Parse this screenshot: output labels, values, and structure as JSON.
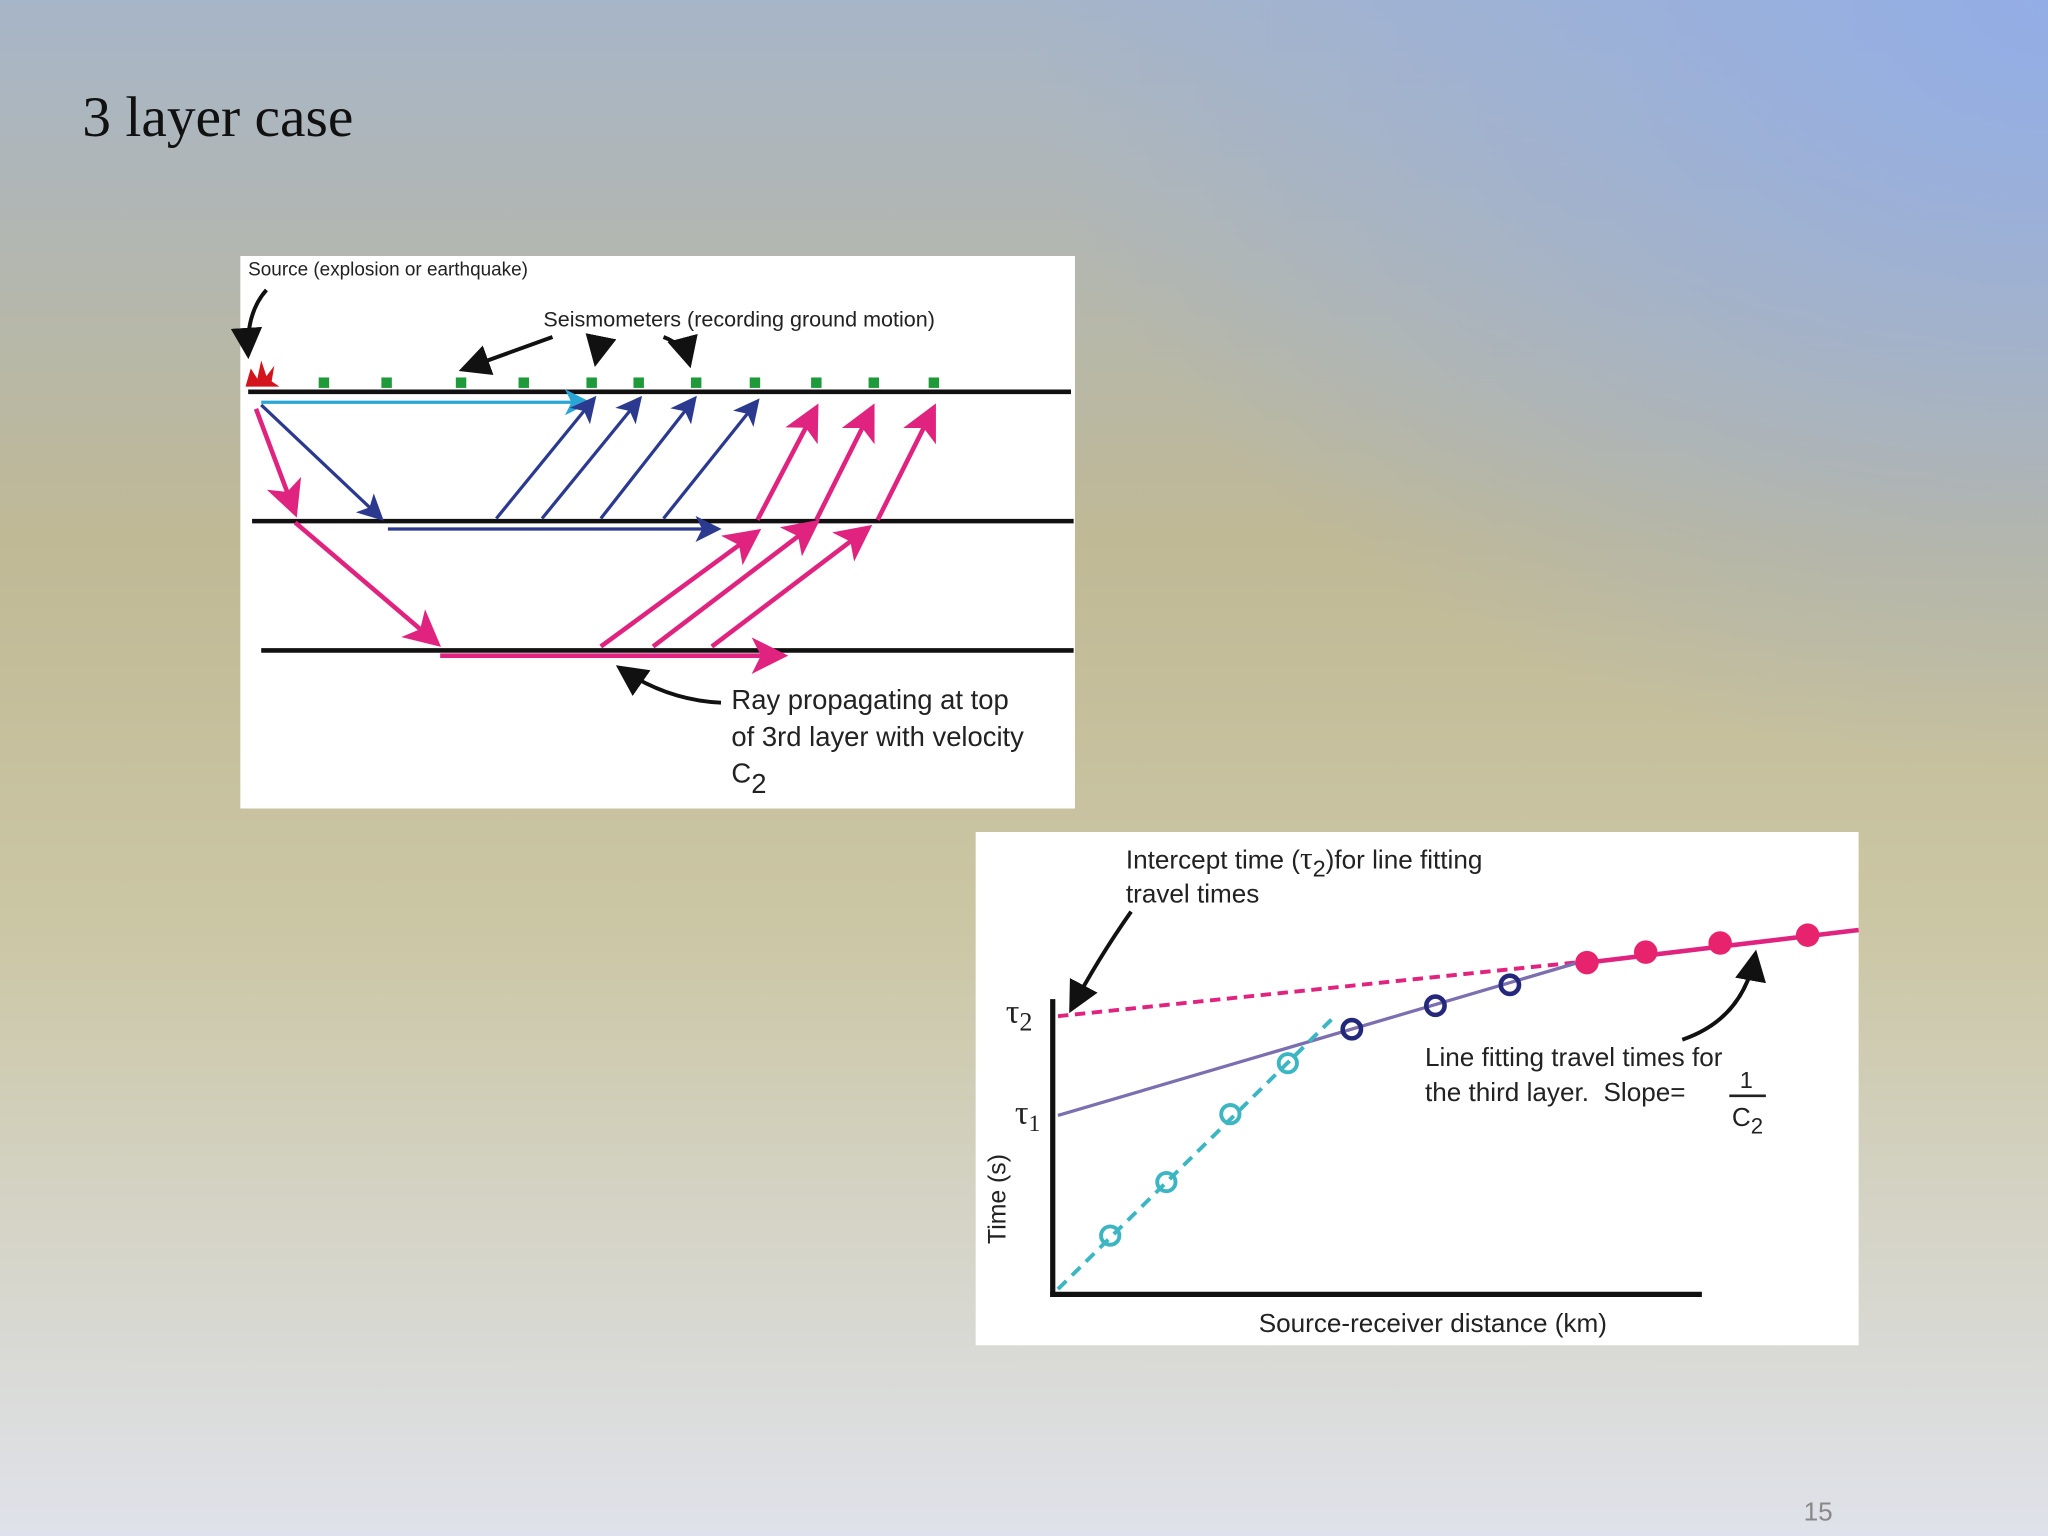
{
  "slide": {
    "title": "3 layer case",
    "page_number": "15"
  },
  "ray_figure": {
    "source_label": "Source (explosion or earthquake)",
    "seismometer_label": "Seismometers (recording ground motion)",
    "ray_label": [
      "Ray propagating at top",
      "of 3rd layer with velocity"
    ],
    "velocity": {
      "symbol": "C",
      "subscript": "2"
    }
  },
  "travel_time_figure": {
    "intercept_label": {
      "before": "Intercept time (",
      "symbol": "τ",
      "subscript": "2",
      "after": ")for line fitting",
      "line2": "travel times"
    },
    "tau2": {
      "symbol": "τ",
      "subscript": "2"
    },
    "tau1": {
      "symbol": "τ",
      "subscript": "1"
    },
    "fit_label": {
      "line1": "Line fitting travel times for",
      "line2": "the third layer.  Slope=",
      "numerator": "1",
      "denominator": {
        "symbol": "C",
        "subscript": "2"
      }
    },
    "y_axis_label": "Time (s)",
    "x_axis_label": "Source-receiver distance (km)"
  }
}
